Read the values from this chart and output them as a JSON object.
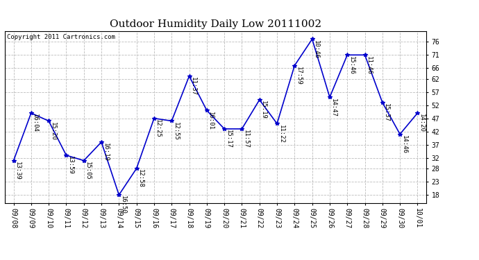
{
  "title": "Outdoor Humidity Daily Low 20111002",
  "copyright": "Copyright 2011 Cartronics.com",
  "dates": [
    "09/08",
    "09/09",
    "09/10",
    "09/11",
    "09/12",
    "09/13",
    "09/14",
    "09/15",
    "09/16",
    "09/17",
    "09/18",
    "09/19",
    "09/20",
    "09/21",
    "09/22",
    "09/23",
    "09/24",
    "09/25",
    "09/26",
    "09/27",
    "09/28",
    "09/29",
    "09/30",
    "10/01"
  ],
  "values": [
    31,
    49,
    46,
    33,
    31,
    38,
    18,
    28,
    47,
    46,
    63,
    50,
    43,
    43,
    54,
    45,
    67,
    77,
    55,
    71,
    71,
    53,
    41,
    49
  ],
  "labels": [
    "13:39",
    "16:04",
    "15:20",
    "13:59",
    "15:05",
    "16:19",
    "16:50",
    "12:58",
    "12:25",
    "12:55",
    "11:37",
    "16:01",
    "15:17",
    "11:57",
    "15:19",
    "11:22",
    "17:59",
    "10:46",
    "14:47",
    "15:46",
    "11:46",
    "15:37",
    "14:46",
    "14:20"
  ],
  "line_color": "#0000cc",
  "marker_color": "#0000cc",
  "bg_color": "#ffffff",
  "grid_color": "#bbbbbb",
  "yticks": [
    18,
    23,
    28,
    32,
    37,
    42,
    47,
    52,
    57,
    62,
    66,
    71,
    76
  ],
  "ylim": [
    15,
    80
  ],
  "title_fontsize": 11,
  "label_fontsize": 6.5,
  "tick_fontsize": 7,
  "copyright_fontsize": 6.5
}
